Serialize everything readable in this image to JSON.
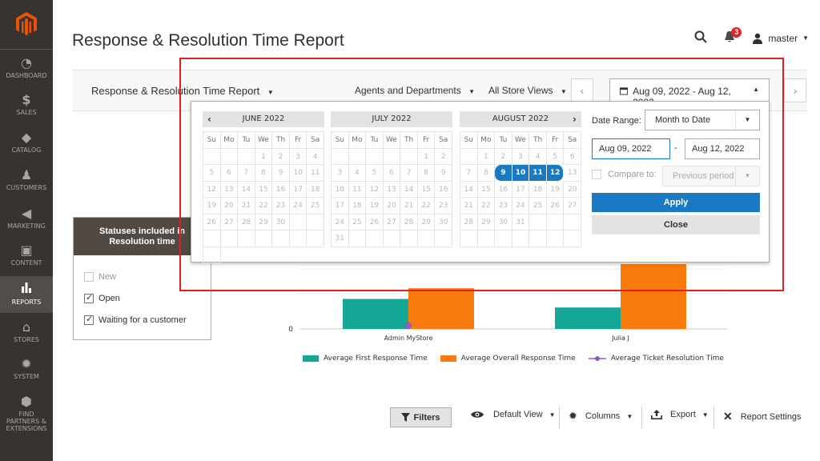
{
  "sidebar": {
    "logo_icon": "magento-logo",
    "items": [
      {
        "label": "DASHBOARD",
        "icon": "gauge-icon"
      },
      {
        "label": "SALES",
        "icon": "dollar-icon"
      },
      {
        "label": "CATALOG",
        "icon": "cube-icon"
      },
      {
        "label": "CUSTOMERS",
        "icon": "person-icon"
      },
      {
        "label": "MARKETING",
        "icon": "megaphone-icon"
      },
      {
        "label": "CONTENT",
        "icon": "layout-icon"
      },
      {
        "label": "REPORTS",
        "icon": "bar-chart-icon"
      },
      {
        "label": "STORES",
        "icon": "store-icon"
      },
      {
        "label": "SYSTEM",
        "icon": "gear-icon"
      },
      {
        "label": "FIND PARTNERS & EXTENSIONS",
        "icon": "box-icon"
      }
    ],
    "active": "REPORTS"
  },
  "header": {
    "title": "Response & Resolution Time Report",
    "notifications_count": "3",
    "user": "master"
  },
  "toolbar": {
    "report_select": "Response & Resolution Time Report",
    "agents_select": "Agents and Departments",
    "store_select": "All Store Views",
    "date_range": "Aug 09, 2022 - Aug 12, 2022"
  },
  "calendar": {
    "dow": [
      "Su",
      "Mo",
      "Tu",
      "We",
      "Th",
      "Fr",
      "Sa"
    ],
    "months": [
      {
        "name": "JUNE 2022",
        "days": [
          "",
          "",
          "",
          "1",
          "2",
          "3",
          "4",
          "5",
          "6",
          "7",
          "8",
          "9",
          "10",
          "11",
          "12",
          "13",
          "14",
          "15",
          "16",
          "17",
          "18",
          "19",
          "20",
          "21",
          "22",
          "23",
          "24",
          "25",
          "26",
          "27",
          "28",
          "29",
          "30",
          "",
          "",
          "",
          "",
          "",
          "",
          "",
          "",
          "",
          ""
        ]
      },
      {
        "name": "JULY 2022",
        "days": [
          "",
          "",
          "",
          "",
          "",
          "1",
          "2",
          "3",
          "4",
          "5",
          "6",
          "7",
          "8",
          "9",
          "10",
          "11",
          "12",
          "13",
          "14",
          "15",
          "16",
          "17",
          "18",
          "19",
          "20",
          "21",
          "22",
          "23",
          "24",
          "25",
          "26",
          "27",
          "28",
          "29",
          "30",
          "31",
          "",
          "",
          "",
          "",
          "",
          ""
        ]
      },
      {
        "name": "AUGUST 2022",
        "days": [
          "",
          "1",
          "2",
          "3",
          "4",
          "5",
          "6",
          "7",
          "8",
          "9",
          "10",
          "11",
          "12",
          "13",
          "14",
          "15",
          "16",
          "17",
          "18",
          "19",
          "20",
          "21",
          "22",
          "23",
          "24",
          "25",
          "26",
          "27",
          "28",
          "29",
          "30",
          "31",
          "",
          "",
          "",
          "",
          "",
          "",
          "",
          "",
          "",
          ""
        ]
      }
    ],
    "selected": [
      "9",
      "10",
      "11",
      "12"
    ],
    "date_range_label": "Date Range:",
    "date_range_value": "Month to Date",
    "from": "Aug 09, 2022",
    "to": "Aug 12, 2022",
    "compare_label": "Compare to:",
    "compare_value": "Previous period",
    "apply": "Apply",
    "close": "Close"
  },
  "statuses": {
    "heading": "Statuses included in Resolution time",
    "items": [
      {
        "label": "New",
        "checked": false
      },
      {
        "label": "Open",
        "checked": true
      },
      {
        "label": "Waiting for a customer",
        "checked": true
      }
    ]
  },
  "chart_data": {
    "type": "bar",
    "categories": [
      "Admin MyStore",
      "Julia J"
    ],
    "series": [
      {
        "name": "Average First Response Time",
        "color": "#14a797",
        "values": [
          1.4,
          1.0
        ]
      },
      {
        "name": "Average Overall Response Time",
        "color": "#f97b0b",
        "values": [
          1.9,
          3.1
        ]
      },
      {
        "name": "Average Ticket Resolution Time",
        "color": "#8a5ad3",
        "values": [
          0,
          null
        ]
      }
    ],
    "y_tick_labels": [
      "0"
    ],
    "ylim": [
      0,
      3.1
    ]
  },
  "bottom_toolbar": {
    "filters": "Filters",
    "default_view": "Default View",
    "columns": "Columns",
    "export": "Export",
    "report_settings": "Report Settings"
  }
}
